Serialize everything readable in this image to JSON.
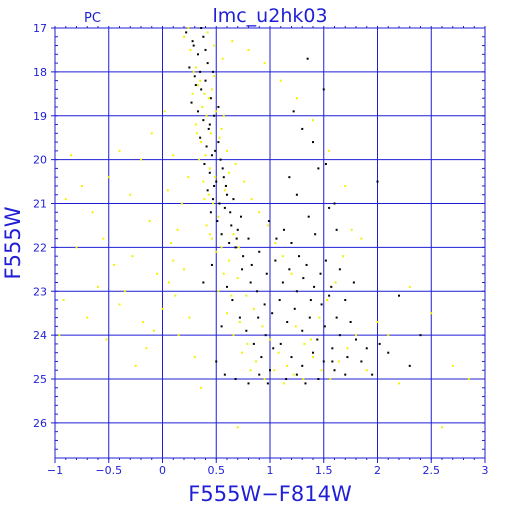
{
  "chart_data": {
    "type": "scatter",
    "title": "lmc_u2hk03",
    "subtitle": "PC",
    "xlabel": "F555W−F814W",
    "ylabel": "F555W",
    "xlim": [
      -1,
      3
    ],
    "ylim": [
      26.8,
      17
    ],
    "y_inverted": true,
    "grid": true,
    "x_ticks": [
      -1,
      -0.5,
      0,
      0.5,
      1,
      1.5,
      2,
      2.5,
      3
    ],
    "x_tick_labels": [
      "−1",
      "−0.5",
      "0",
      "0.5",
      "1",
      "1.5",
      "2",
      "2.5",
      "3"
    ],
    "y_ticks": [
      17,
      18,
      19,
      20,
      21,
      22,
      23,
      24,
      25,
      26
    ],
    "y_tick_labels": [
      "17",
      "18",
      "19",
      "20",
      "21",
      "22",
      "23",
      "24",
      "25",
      "26"
    ],
    "colors": {
      "axis": "#1f1fd6",
      "series_black": "#000000",
      "series_yellow": "#f2f200"
    },
    "series": [
      {
        "color": "black",
        "points": [
          [
            0.22,
            17.1
          ],
          [
            0.28,
            17.3
          ],
          [
            0.33,
            17.6
          ],
          [
            0.38,
            17.2
          ],
          [
            0.42,
            17.8
          ],
          [
            0.25,
            17.9
          ],
          [
            0.3,
            18.1
          ],
          [
            0.36,
            18.4
          ],
          [
            0.4,
            18.2
          ],
          [
            0.45,
            18.6
          ],
          [
            0.27,
            18.7
          ],
          [
            0.33,
            18.9
          ],
          [
            0.38,
            19.1
          ],
          [
            0.43,
            19.3
          ],
          [
            0.48,
            19.0
          ],
          [
            0.35,
            19.5
          ],
          [
            0.41,
            19.7
          ],
          [
            0.46,
            19.9
          ],
          [
            0.52,
            19.6
          ],
          [
            0.39,
            20.1
          ],
          [
            0.44,
            20.3
          ],
          [
            0.5,
            20.5
          ],
          [
            0.56,
            20.2
          ],
          [
            0.42,
            20.7
          ],
          [
            0.47,
            20.9
          ],
          [
            0.53,
            21.0
          ],
          [
            0.6,
            20.8
          ],
          [
            0.45,
            21.2
          ],
          [
            0.51,
            21.4
          ],
          [
            0.58,
            21.1
          ],
          [
            0.64,
            21.5
          ],
          [
            0.55,
            21.7
          ],
          [
            0.62,
            21.9
          ],
          [
            0.7,
            21.6
          ],
          [
            0.48,
            20.6
          ],
          [
            0.57,
            20.4
          ],
          [
            0.66,
            20.9
          ],
          [
            0.73,
            21.3
          ],
          [
            0.8,
            21.8
          ],
          [
            0.68,
            22.0
          ],
          [
            0.75,
            22.2
          ],
          [
            0.83,
            22.4
          ],
          [
            0.9,
            22.1
          ],
          [
            0.97,
            22.6
          ],
          [
            1.05,
            22.3
          ],
          [
            1.12,
            22.8
          ],
          [
            1.18,
            22.5
          ],
          [
            1.25,
            23.0
          ],
          [
            1.31,
            22.7
          ],
          [
            1.38,
            23.2
          ],
          [
            0.88,
            23.0
          ],
          [
            0.95,
            23.3
          ],
          [
            1.02,
            23.5
          ],
          [
            1.09,
            23.2
          ],
          [
            1.16,
            23.7
          ],
          [
            1.23,
            23.4
          ],
          [
            1.3,
            23.9
          ],
          [
            1.37,
            23.6
          ],
          [
            1.44,
            24.1
          ],
          [
            1.51,
            23.8
          ],
          [
            1.58,
            24.3
          ],
          [
            1.65,
            24.0
          ],
          [
            1.72,
            24.5
          ],
          [
            1.48,
            23.3
          ],
          [
            1.55,
            23.1
          ],
          [
            1.62,
            23.6
          ],
          [
            1.41,
            22.9
          ],
          [
            1.34,
            22.4
          ],
          [
            1.27,
            22.2
          ],
          [
            1.2,
            21.9
          ],
          [
            1.13,
            21.6
          ],
          [
            1.06,
            21.8
          ],
          [
            0.99,
            21.4
          ],
          [
            1.1,
            24.2
          ],
          [
            1.2,
            24.5
          ],
          [
            1.3,
            24.7
          ],
          [
            1.4,
            24.4
          ],
          [
            1.5,
            24.6
          ],
          [
            1.6,
            24.8
          ],
          [
            1.7,
            24.9
          ],
          [
            1.0,
            24.8
          ],
          [
            0.92,
            24.5
          ],
          [
            0.85,
            24.2
          ],
          [
            0.78,
            23.9
          ],
          [
            0.72,
            23.6
          ],
          [
            0.65,
            23.2
          ],
          [
            0.6,
            22.9
          ],
          [
            1.75,
            23.7
          ],
          [
            1.8,
            24.1
          ],
          [
            1.85,
            24.6
          ],
          [
            1.9,
            24.3
          ],
          [
            1.95,
            24.9
          ],
          [
            2.02,
            24.2
          ],
          [
            2.1,
            24.4
          ],
          [
            1.47,
            22.6
          ],
          [
            1.52,
            22.3
          ],
          [
            1.57,
            22.9
          ],
          [
            1.42,
            21.7
          ],
          [
            1.36,
            21.3
          ],
          [
            1.45,
            20.2
          ],
          [
            1.3,
            19.3
          ],
          [
            1.22,
            18.9
          ],
          [
            1.35,
            17.7
          ],
          [
            1.5,
            18.4
          ],
          [
            1.55,
            21.1
          ],
          [
            1.62,
            21.6
          ],
          [
            2.0,
            20.5
          ],
          [
            2.2,
            23.1
          ],
          [
            0.4,
            17.5
          ],
          [
            0.35,
            18.0
          ],
          [
            0.31,
            18.3
          ],
          [
            0.44,
            19.2
          ],
          [
            0.49,
            19.8
          ],
          [
            0.54,
            20.0
          ],
          [
            0.59,
            20.6
          ],
          [
            0.63,
            21.2
          ],
          [
            0.69,
            21.8
          ],
          [
            0.74,
            22.5
          ],
          [
            0.82,
            22.8
          ],
          [
            0.89,
            23.6
          ],
          [
            0.96,
            24.0
          ],
          [
            1.03,
            24.3
          ],
          [
            0.58,
            24.9
          ],
          [
            0.68,
            25.0
          ],
          [
            0.8,
            25.1
          ],
          [
            0.5,
            24.6
          ],
          [
            0.55,
            23.8
          ],
          [
            0.46,
            22.4
          ],
          [
            0.38,
            22.8
          ],
          [
            1.65,
            22.5
          ],
          [
            1.7,
            23.2
          ],
          [
            1.78,
            22.8
          ],
          [
            1.58,
            24.6
          ],
          [
            1.45,
            25.0
          ],
          [
            1.33,
            25.1
          ],
          [
            1.25,
            24.9
          ],
          [
            1.15,
            25.0
          ],
          [
            0.98,
            25.1
          ],
          [
            0.9,
            24.9
          ],
          [
            2.3,
            24.7
          ],
          [
            2.4,
            24.0
          ],
          [
            1.6,
            21.0
          ],
          [
            1.52,
            20.1
          ],
          [
            1.4,
            19.6
          ],
          [
            1.25,
            20.8
          ],
          [
            1.18,
            20.4
          ],
          [
            0.36,
            17.0
          ],
          [
            0.29,
            17.4
          ],
          [
            0.47,
            18.0
          ],
          [
            0.52,
            18.8
          ]
        ]
      },
      {
        "color": "yellow",
        "points": [
          [
            0.2,
            17.2
          ],
          [
            0.26,
            17.5
          ],
          [
            0.31,
            17.9
          ],
          [
            0.35,
            18.2
          ],
          [
            0.39,
            18.5
          ],
          [
            0.29,
            18.0
          ],
          [
            0.33,
            18.3
          ],
          [
            0.37,
            18.8
          ],
          [
            0.41,
            19.0
          ],
          [
            0.45,
            19.4
          ],
          [
            0.31,
            19.2
          ],
          [
            0.36,
            19.6
          ],
          [
            0.4,
            19.9
          ],
          [
            0.44,
            20.2
          ],
          [
            0.49,
            20.4
          ],
          [
            0.34,
            20.0
          ],
          [
            0.38,
            20.5
          ],
          [
            0.43,
            20.8
          ],
          [
            0.47,
            21.0
          ],
          [
            0.52,
            21.3
          ],
          [
            0.41,
            21.5
          ],
          [
            0.46,
            21.8
          ],
          [
            0.55,
            22.0
          ],
          [
            0.62,
            22.3
          ],
          [
            0.7,
            22.7
          ],
          [
            0.78,
            23.1
          ],
          [
            0.85,
            23.4
          ],
          [
            0.93,
            23.8
          ],
          [
            1.0,
            24.1
          ],
          [
            1.08,
            24.4
          ],
          [
            1.16,
            24.7
          ],
          [
            0.66,
            24.0
          ],
          [
            0.74,
            24.4
          ],
          [
            0.82,
            24.8
          ],
          [
            0.6,
            23.5
          ],
          [
            0.52,
            23.0
          ],
          [
            1.24,
            23.8
          ],
          [
            1.32,
            24.2
          ],
          [
            1.4,
            24.5
          ],
          [
            1.48,
            24.8
          ],
          [
            1.56,
            25.0
          ],
          [
            1.64,
            24.6
          ],
          [
            1.72,
            24.3
          ],
          [
            1.8,
            24.0
          ],
          [
            1.2,
            22.6
          ],
          [
            1.12,
            22.2
          ],
          [
            1.05,
            21.9
          ],
          [
            0.98,
            21.5
          ],
          [
            0.9,
            21.2
          ],
          [
            0.83,
            20.9
          ],
          [
            0.76,
            20.5
          ],
          [
            0.68,
            20.1
          ],
          [
            0.6,
            19.8
          ],
          [
            0.55,
            19.3
          ],
          [
            0.5,
            18.9
          ],
          [
            0.46,
            18.4
          ],
          [
            0.24,
            20.4
          ],
          [
            0.18,
            21.0
          ],
          [
            0.14,
            21.6
          ],
          [
            0.1,
            22.3
          ],
          [
            0.06,
            22.8
          ],
          [
            0.0,
            23.4
          ],
          [
            -0.08,
            23.9
          ],
          [
            -0.15,
            24.3
          ],
          [
            -0.25,
            24.7
          ],
          [
            -0.35,
            23.0
          ],
          [
            -0.45,
            22.4
          ],
          [
            -0.55,
            21.8
          ],
          [
            -0.65,
            21.2
          ],
          [
            -0.75,
            20.6
          ],
          [
            -0.85,
            19.9
          ],
          [
            -0.92,
            23.2
          ],
          [
            -0.96,
            24.0
          ],
          [
            -0.7,
            23.6
          ],
          [
            -0.6,
            22.9
          ],
          [
            -0.3,
            20.8
          ],
          [
            -0.2,
            20.0
          ],
          [
            -0.1,
            19.4
          ],
          [
            0.02,
            18.9
          ],
          [
            0.1,
            19.9
          ],
          [
            -0.12,
            21.4
          ],
          [
            -0.28,
            22.2
          ],
          [
            -0.4,
            23.3
          ],
          [
            -0.52,
            24.1
          ],
          [
            0.15,
            24.0
          ],
          [
            0.25,
            23.6
          ],
          [
            0.3,
            24.5
          ],
          [
            0.36,
            25.2
          ],
          [
            0.7,
            26.1
          ],
          [
            1.9,
            24.8
          ],
          [
            2.1,
            24.0
          ],
          [
            2.3,
            22.9
          ],
          [
            2.5,
            23.5
          ],
          [
            2.7,
            24.7
          ],
          [
            2.85,
            25.0
          ],
          [
            2.6,
            26.1
          ],
          [
            2.2,
            25.1
          ],
          [
            2.0,
            23.7
          ],
          [
            1.85,
            21.8
          ],
          [
            1.7,
            20.6
          ],
          [
            1.55,
            19.8
          ],
          [
            1.4,
            19.1
          ],
          [
            1.25,
            18.6
          ],
          [
            1.1,
            18.2
          ],
          [
            0.95,
            17.8
          ],
          [
            0.8,
            17.5
          ],
          [
            0.65,
            17.3
          ],
          [
            0.56,
            17.7
          ],
          [
            0.48,
            17.4
          ],
          [
            0.42,
            17.1
          ],
          [
            0.24,
            17.0
          ],
          [
            0.28,
            18.5
          ],
          [
            0.32,
            19.4
          ],
          [
            0.39,
            20.9
          ],
          [
            0.44,
            21.7
          ],
          [
            0.5,
            22.1
          ],
          [
            0.57,
            22.6
          ],
          [
            0.64,
            23.1
          ],
          [
            0.72,
            23.7
          ],
          [
            0.79,
            24.2
          ],
          [
            0.87,
            24.6
          ],
          [
            0.95,
            25.0
          ],
          [
            1.04,
            24.8
          ],
          [
            1.13,
            25.1
          ],
          [
            1.22,
            24.9
          ],
          [
            1.31,
            25.0
          ],
          [
            1.38,
            24.1
          ],
          [
            1.46,
            23.6
          ],
          [
            1.53,
            23.2
          ],
          [
            1.61,
            22.8
          ],
          [
            1.68,
            22.2
          ],
          [
            1.76,
            21.6
          ],
          [
            0.66,
            21.7
          ],
          [
            0.71,
            22.0
          ],
          [
            0.58,
            20.7
          ],
          [
            0.62,
            20.3
          ],
          [
            0.53,
            19.5
          ],
          [
            0.57,
            19.0
          ],
          [
            0.43,
            18.6
          ],
          [
            0.48,
            18.1
          ],
          [
            -0.5,
            20.4
          ],
          [
            -0.4,
            19.8
          ],
          [
            -0.8,
            22.0
          ],
          [
            -0.9,
            20.9
          ],
          [
            0.05,
            20.7
          ],
          [
            0.08,
            21.9
          ],
          [
            -0.05,
            22.6
          ],
          [
            0.12,
            23.1
          ],
          [
            0.2,
            22.5
          ],
          [
            -0.18,
            23.7
          ]
        ]
      }
    ]
  }
}
